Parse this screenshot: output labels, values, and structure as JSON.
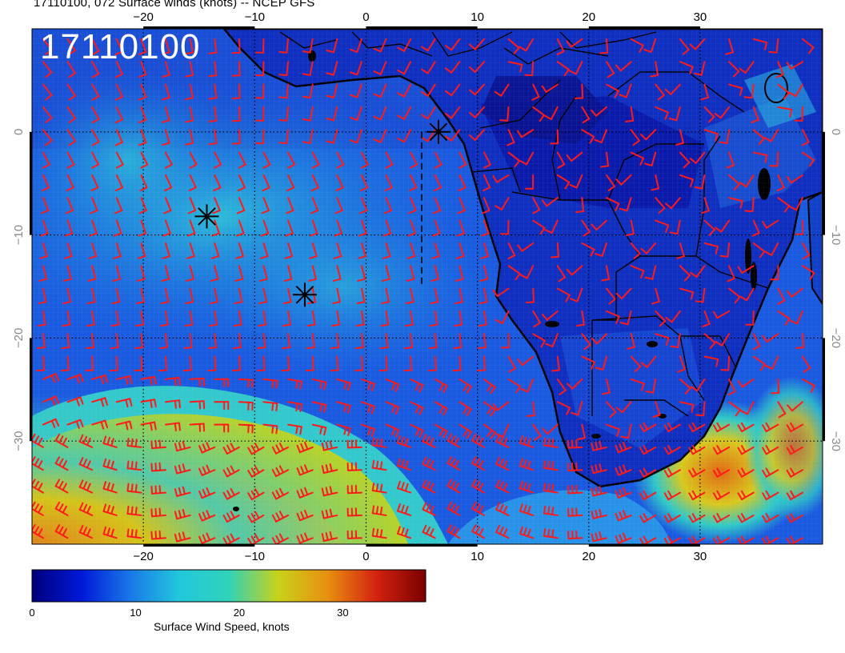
{
  "header": {
    "title": "17110100, 072 Surface winds (knots) -- NCEP GFS",
    "timestamp_label": "17110100"
  },
  "map": {
    "lon_range": [
      -30,
      41
    ],
    "lat_range": [
      -40,
      10
    ],
    "lon_ticks": [
      {
        "value": -20,
        "label": "−20"
      },
      {
        "value": -10,
        "label": "−10"
      },
      {
        "value": 0,
        "label": "0"
      },
      {
        "value": 10,
        "label": "10"
      },
      {
        "value": 20,
        "label": "20"
      },
      {
        "value": 30,
        "label": "30"
      }
    ],
    "lat_ticks": [
      {
        "value": 0,
        "label": "0"
      },
      {
        "value": -10,
        "label": "−10"
      },
      {
        "value": -20,
        "label": "−20"
      },
      {
        "value": -30,
        "label": "−30"
      }
    ],
    "gridlines": true,
    "markers": [
      {
        "lon": 6.5,
        "lat": 0.0
      },
      {
        "lon": -14.3,
        "lat": -8.2
      },
      {
        "lon": -5.5,
        "lat": -15.8
      }
    ],
    "dashed_line": [
      {
        "lon": 5.0,
        "lat": 0.0
      },
      {
        "lon": 5.0,
        "lat": -15.0
      }
    ],
    "barb_color": "#ff1a1a"
  },
  "colorbar": {
    "title": "Surface Wind Speed, knots",
    "min": 0,
    "max": 38,
    "ticks": [
      {
        "value": 0,
        "label": "0"
      },
      {
        "value": 10,
        "label": "10"
      },
      {
        "value": 20,
        "label": "20"
      },
      {
        "value": 30,
        "label": "30"
      }
    ],
    "colors": [
      "#00007a",
      "#0018d8",
      "#1a78e8",
      "#22c8dc",
      "#30d2b8",
      "#c8d21a",
      "#e89010",
      "#d42210",
      "#7a0000"
    ]
  }
}
